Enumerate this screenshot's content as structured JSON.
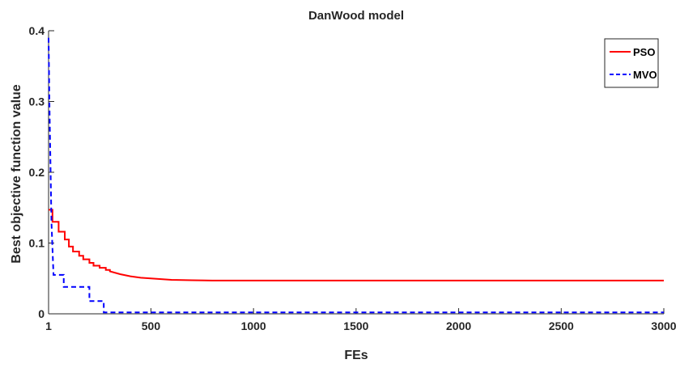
{
  "chart_data": {
    "type": "line",
    "title": "DanWood model",
    "xlabel": "FEs",
    "ylabel": "Best objective function value",
    "xlim": [
      1,
      3000
    ],
    "ylim": [
      0,
      0.4
    ],
    "x_ticks": [
      1,
      500,
      1000,
      1500,
      2000,
      2500,
      3000
    ],
    "x_tick_labels": [
      "1",
      "500",
      "1000",
      "1500",
      "2000",
      "2500",
      "3000"
    ],
    "y_ticks": [
      0,
      0.1,
      0.2,
      0.3,
      0.4
    ],
    "y_tick_labels": [
      "0",
      "0.1",
      "0.2",
      "0.3",
      "0.4"
    ],
    "grid": false,
    "legend_position": "top-right",
    "series": [
      {
        "name": "PSO",
        "color": "#ff0000",
        "style": "solid",
        "x": [
          1,
          20,
          20,
          50,
          50,
          80,
          80,
          100,
          100,
          120,
          120,
          150,
          150,
          170,
          170,
          200,
          200,
          220,
          220,
          250,
          250,
          280,
          280,
          300,
          300,
          350,
          400,
          450,
          500,
          600,
          700,
          800,
          1000,
          1500,
          2000,
          2500,
          3000
        ],
        "y": [
          0.147,
          0.147,
          0.13,
          0.13,
          0.116,
          0.116,
          0.105,
          0.105,
          0.095,
          0.095,
          0.088,
          0.088,
          0.082,
          0.082,
          0.077,
          0.077,
          0.072,
          0.072,
          0.068,
          0.068,
          0.065,
          0.065,
          0.062,
          0.062,
          0.06,
          0.056,
          0.053,
          0.051,
          0.05,
          0.048,
          0.0475,
          0.047,
          0.047,
          0.047,
          0.047,
          0.047,
          0.047
        ]
      },
      {
        "name": "MVO",
        "color": "#0000ff",
        "style": "dashed",
        "x": [
          1,
          5,
          15,
          25,
          25,
          75,
          75,
          200,
          200,
          270,
          270,
          3000
        ],
        "y": [
          0.39,
          0.3,
          0.13,
          0.055,
          0.055,
          0.055,
          0.038,
          0.038,
          0.018,
          0.018,
          0.002,
          0.002
        ]
      }
    ]
  }
}
